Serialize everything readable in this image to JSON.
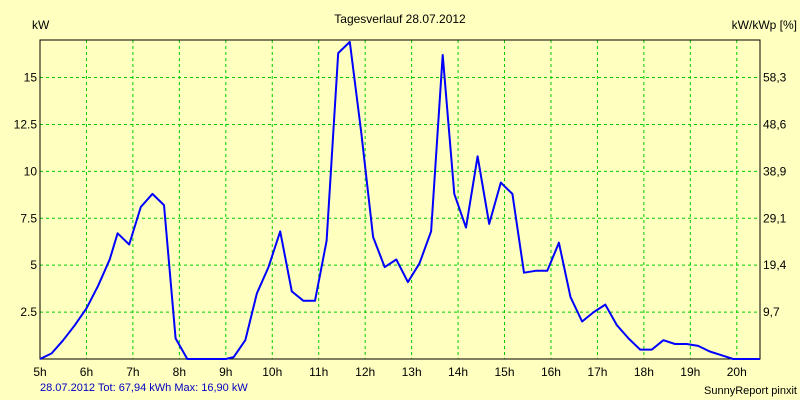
{
  "chart_data": {
    "type": "line",
    "title": "Tagesverlauf 28.07.2012",
    "ylabel_left": "kW",
    "ylabel_right": "kW/kWp [%]",
    "xlim": [
      5,
      20.5
    ],
    "ylim": [
      0,
      17
    ],
    "grid": true,
    "x_ticks": [
      {
        "value": 5,
        "label": "5h"
      },
      {
        "value": 6,
        "label": "6h"
      },
      {
        "value": 7,
        "label": "7h"
      },
      {
        "value": 8,
        "label": "8h"
      },
      {
        "value": 9,
        "label": "9h"
      },
      {
        "value": 10,
        "label": "10h"
      },
      {
        "value": 11,
        "label": "11h"
      },
      {
        "value": 12,
        "label": "12h"
      },
      {
        "value": 13,
        "label": "13h"
      },
      {
        "value": 14,
        "label": "14h"
      },
      {
        "value": 15,
        "label": "15h"
      },
      {
        "value": 16,
        "label": "16h"
      },
      {
        "value": 17,
        "label": "17h"
      },
      {
        "value": 18,
        "label": "18h"
      },
      {
        "value": 19,
        "label": "19h"
      },
      {
        "value": 20,
        "label": "20h"
      }
    ],
    "y_ticks_left": [
      {
        "value": 2.5,
        "label": "2.5"
      },
      {
        "value": 5,
        "label": "5"
      },
      {
        "value": 7.5,
        "label": "7.5"
      },
      {
        "value": 10,
        "label": "10"
      },
      {
        "value": 12.5,
        "label": "12.5"
      },
      {
        "value": 15,
        "label": "15"
      }
    ],
    "y_ticks_right": [
      {
        "value": 2.5,
        "label": "9,7"
      },
      {
        "value": 5,
        "label": "19,4"
      },
      {
        "value": 7.5,
        "label": "29,1"
      },
      {
        "value": 10,
        "label": "38,9"
      },
      {
        "value": 12.5,
        "label": "48,6"
      },
      {
        "value": 15,
        "label": "58,3"
      }
    ],
    "series": [
      {
        "color": "#0000ff",
        "x": [
          5.0,
          5.25,
          5.5,
          5.75,
          6.0,
          6.25,
          6.5,
          6.67,
          6.92,
          7.17,
          7.42,
          7.67,
          7.92,
          8.17,
          8.5,
          9.0,
          9.17,
          9.42,
          9.67,
          9.92,
          10.17,
          10.42,
          10.67,
          10.92,
          11.17,
          11.42,
          11.67,
          11.92,
          12.17,
          12.42,
          12.67,
          12.92,
          13.17,
          13.42,
          13.67,
          13.92,
          14.17,
          14.42,
          14.67,
          14.92,
          15.17,
          15.42,
          15.67,
          15.92,
          16.17,
          16.42,
          16.67,
          16.92,
          17.17,
          17.42,
          17.67,
          17.92,
          18.17,
          18.42,
          18.67,
          18.92,
          19.17,
          19.42,
          19.67,
          19.92,
          20.25,
          20.5
        ],
        "y": [
          0.0,
          0.3,
          1.0,
          1.8,
          2.7,
          3.9,
          5.3,
          6.7,
          6.1,
          8.1,
          8.8,
          8.2,
          1.1,
          0.0,
          0.0,
          0.0,
          0.1,
          1.0,
          3.5,
          4.9,
          6.8,
          3.6,
          3.1,
          3.1,
          6.3,
          16.3,
          16.9,
          12.0,
          6.5,
          4.9,
          5.3,
          4.1,
          5.1,
          6.8,
          16.2,
          8.8,
          7.0,
          10.8,
          7.2,
          9.4,
          8.8,
          4.6,
          4.7,
          4.7,
          6.2,
          3.3,
          2.0,
          2.5,
          2.9,
          1.8,
          1.1,
          0.5,
          0.5,
          1.0,
          0.8,
          0.8,
          0.7,
          0.4,
          0.2,
          0.0,
          0.0,
          0.0
        ]
      }
    ]
  },
  "footer": {
    "left_text": "28.07.2012 Tot: 67,94 kWh Max: 16,90 kW",
    "right_text": "SunnyReport pinxit"
  }
}
